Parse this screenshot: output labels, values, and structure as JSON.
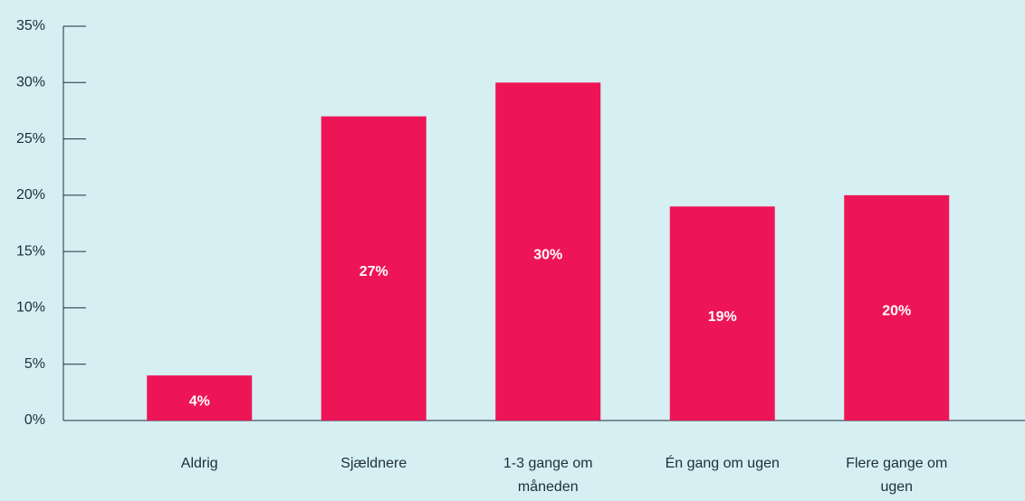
{
  "chart_data": {
    "type": "bar",
    "categories": [
      "Aldrig",
      "Sjældnere",
      "1-3 gange om måneden",
      "Én gang om ugen",
      "Flere gange om ugen"
    ],
    "values": [
      4,
      27,
      30,
      19,
      20
    ],
    "value_labels": [
      "4%",
      "27%",
      "30%",
      "19%",
      "20%"
    ],
    "color": "#ee1556",
    "ylim": [
      0,
      35
    ],
    "yticks": [
      {
        "value": 0,
        "label": "0%"
      },
      {
        "value": 5,
        "label": "5%"
      },
      {
        "value": 10,
        "label": "10%"
      },
      {
        "value": 15,
        "label": "15%"
      },
      {
        "value": 20,
        "label": "20%"
      },
      {
        "value": 25,
        "label": "25%"
      },
      {
        "value": 30,
        "label": "30%"
      },
      {
        "value": 35,
        "label": "35%"
      }
    ]
  }
}
